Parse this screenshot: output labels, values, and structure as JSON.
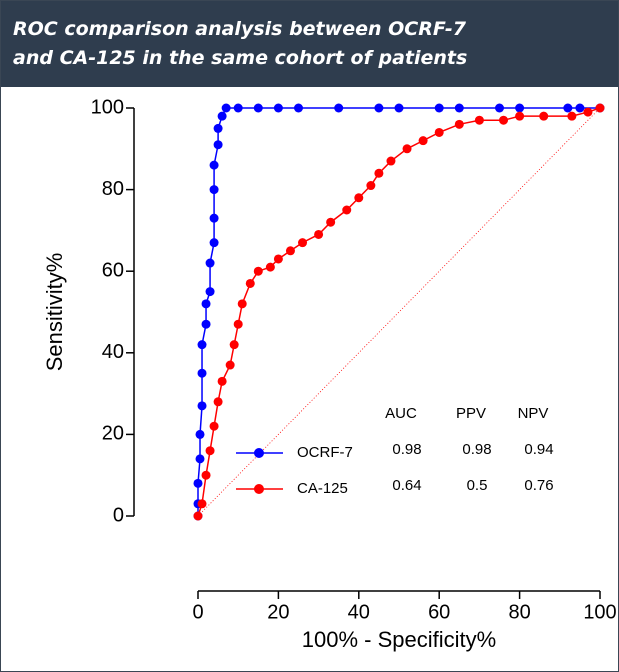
{
  "chart_data": {
    "type": "line",
    "title": "ROC comparison analysis between OCRF-7\nand CA-125 in the same cohort of patients",
    "x_label": "100% - Specificity%",
    "y_label": "Sensitivity%",
    "xlim": [
      0,
      100
    ],
    "ylim": [
      0,
      100
    ],
    "xticks": [
      0,
      20,
      40,
      60,
      80,
      100
    ],
    "yticks": [
      0,
      20,
      40,
      60,
      80,
      100
    ],
    "series": [
      {
        "name": "OCRF-7",
        "color": "#0000ff",
        "x": [
          0,
          0,
          0,
          0.5,
          0.5,
          1,
          1,
          1,
          2,
          2,
          3,
          3,
          4,
          4,
          4,
          4,
          5,
          5,
          6,
          7,
          10,
          15,
          20,
          25,
          35,
          45,
          50,
          60,
          65,
          75,
          80,
          92,
          95,
          100
        ],
        "values": [
          0,
          3,
          8,
          14,
          20,
          27,
          35,
          42,
          47,
          52,
          55,
          62,
          67,
          73,
          80,
          86,
          91,
          95,
          98,
          100,
          100,
          100,
          100,
          100,
          100,
          100,
          100,
          100,
          100,
          100,
          100,
          100,
          100,
          100
        ]
      },
      {
        "name": "CA-125",
        "color": "#ff0000",
        "x": [
          0,
          1,
          2,
          3,
          4,
          5,
          6,
          8,
          9,
          10,
          11,
          13,
          15,
          18,
          20,
          23,
          26,
          30,
          33,
          37,
          40,
          43,
          45,
          48,
          52,
          56,
          60,
          65,
          70,
          76,
          80,
          86,
          93,
          97,
          100
        ],
        "values": [
          0,
          3,
          10,
          16,
          22,
          28,
          33,
          37,
          42,
          47,
          52,
          57,
          60,
          61,
          63,
          65,
          67,
          69,
          72,
          75,
          78,
          81,
          84,
          87,
          90,
          92,
          94,
          96,
          97,
          97,
          98,
          98,
          98,
          99,
          100
        ]
      }
    ],
    "table": {
      "columns": [
        "AUC",
        "PPV",
        "NPV"
      ],
      "rows": [
        [
          0.98,
          0.98,
          0.94
        ],
        [
          0.64,
          0.5,
          0.76
        ]
      ]
    }
  }
}
